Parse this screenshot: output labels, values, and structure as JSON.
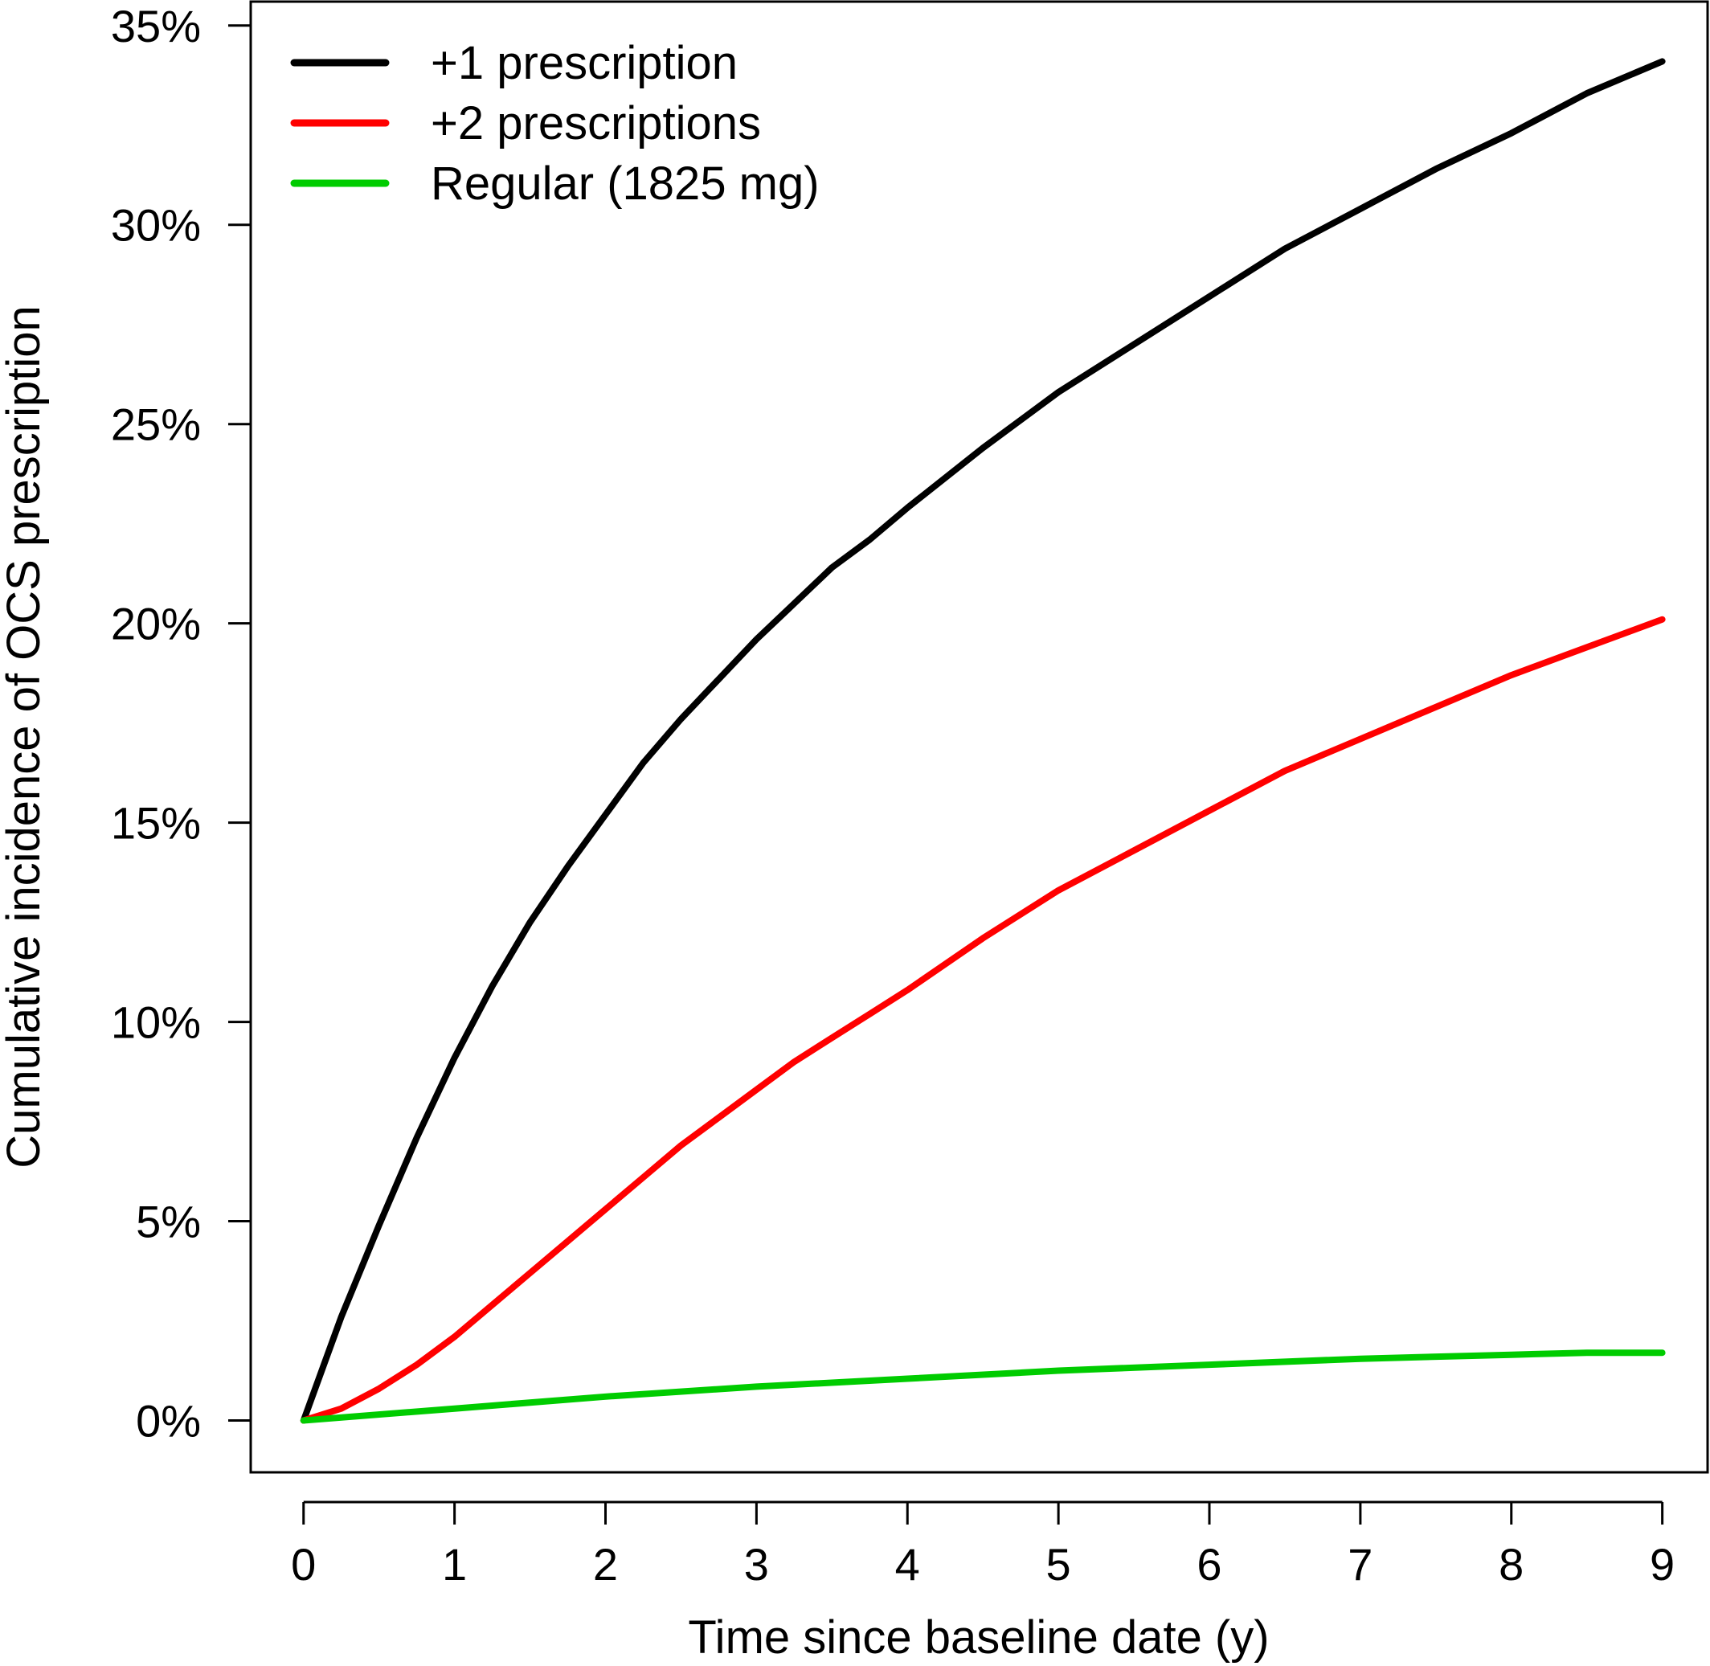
{
  "chart_data": {
    "type": "line",
    "title": "",
    "xlabel": "Time since baseline date (y)",
    "ylabel": "Cumulative incidence of OCS prescription",
    "xlim": [
      -0.35,
      9.3
    ],
    "ylim": [
      -1.3,
      35.6
    ],
    "x_ticks": [
      0,
      1,
      2,
      3,
      4,
      5,
      6,
      7,
      8,
      9
    ],
    "x_tick_labels": [
      "0",
      "1",
      "2",
      "3",
      "4",
      "5",
      "6",
      "7",
      "8",
      "9"
    ],
    "y_ticks": [
      0,
      5,
      10,
      15,
      20,
      25,
      30,
      35
    ],
    "y_tick_labels": [
      "0%",
      "5%",
      "10%",
      "15%",
      "20%",
      "25%",
      "30%",
      "35%"
    ],
    "grid": false,
    "legend_position": "top-left",
    "series": [
      {
        "name": "+1 prescription",
        "color": "#000000",
        "x": [
          0,
          0.25,
          0.5,
          0.75,
          1,
          1.25,
          1.5,
          1.75,
          2,
          2.25,
          2.5,
          2.75,
          3,
          3.25,
          3.5,
          3.75,
          4,
          4.5,
          5,
          5.5,
          6,
          6.5,
          7,
          7.5,
          8,
          8.5,
          9
        ],
        "y": [
          0,
          2.6,
          4.9,
          7.1,
          9.1,
          10.9,
          12.5,
          13.9,
          15.2,
          16.5,
          17.6,
          18.6,
          19.6,
          20.5,
          21.4,
          22.1,
          22.9,
          24.4,
          25.8,
          27.0,
          28.2,
          29.4,
          30.4,
          31.4,
          32.3,
          33.3,
          34.1
        ]
      },
      {
        "name": "+2 prescriptions",
        "color": "#ff0000",
        "x": [
          0,
          0.25,
          0.5,
          0.75,
          1,
          1.25,
          1.5,
          1.75,
          2,
          2.25,
          2.5,
          2.75,
          3,
          3.25,
          3.5,
          3.75,
          4,
          4.5,
          5,
          5.5,
          6,
          6.5,
          7,
          7.5,
          8,
          8.5,
          9
        ],
        "y": [
          0,
          0.3,
          0.8,
          1.4,
          2.1,
          2.9,
          3.7,
          4.5,
          5.3,
          6.1,
          6.9,
          7.6,
          8.3,
          9.0,
          9.6,
          10.2,
          10.8,
          12.1,
          13.3,
          14.3,
          15.3,
          16.3,
          17.1,
          17.9,
          18.7,
          19.4,
          20.1
        ]
      },
      {
        "name": "Regular (1825 mg)",
        "color": "#00cc00",
        "x": [
          0,
          1,
          2,
          3,
          4,
          5,
          6,
          7,
          8,
          8.5,
          9
        ],
        "y": [
          0,
          0.3,
          0.6,
          0.85,
          1.05,
          1.25,
          1.4,
          1.55,
          1.65,
          1.7,
          1.7
        ]
      }
    ]
  }
}
